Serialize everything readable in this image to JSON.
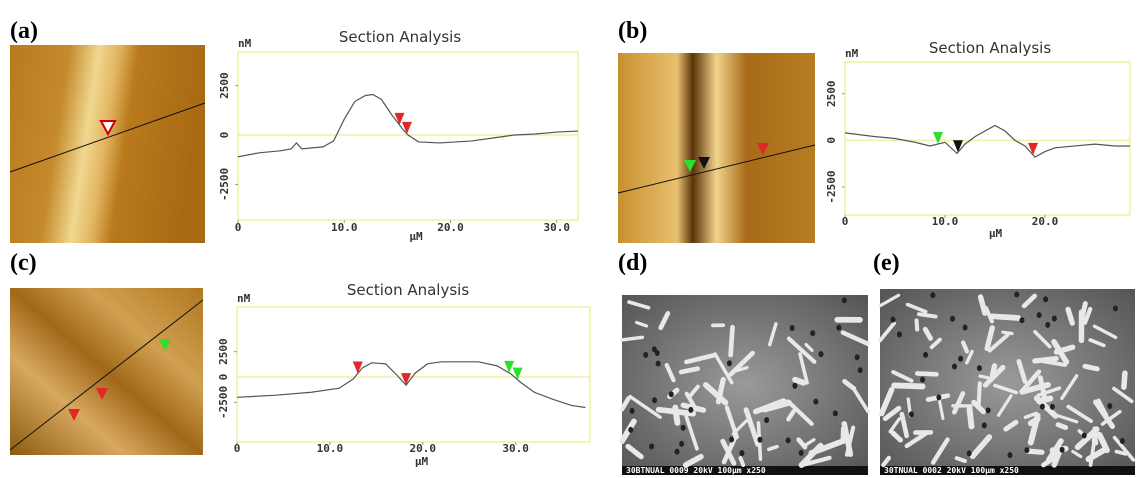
{
  "figure": {
    "labels": [
      "(a)",
      "(b)",
      "(c)",
      "(d)",
      "(e)"
    ],
    "sem_captions": [
      "30BTNUAL 0009 20kV 100μm x250",
      "30TNUAL 0002 20kV 100μm x250"
    ]
  },
  "chart_data": [
    {
      "type": "line",
      "title": "Section Analysis",
      "xlabel": "μM",
      "ylabel": "nM",
      "xlim": [
        0,
        32
      ],
      "ylim": [
        -4300,
        4200
      ],
      "xticks": [
        0,
        {
          "value": 10,
          "label": "10.0"
        },
        {
          "value": 20,
          "label": "20.0"
        },
        {
          "value": 30,
          "label": "30.0"
        }
      ],
      "yticks": [
        2500,
        0,
        -2500
      ],
      "color": "#555555",
      "x": [
        0,
        2,
        4,
        5,
        5.5,
        6,
        8,
        9,
        10,
        11,
        12,
        12.7,
        13.5,
        14.5,
        15.5,
        16,
        17,
        19,
        22,
        24,
        26,
        28,
        30,
        32
      ],
      "values": [
        -1100,
        -900,
        -800,
        -700,
        -400,
        -700,
        -600,
        -300,
        800,
        1700,
        2000,
        2050,
        1800,
        1000,
        300,
        0,
        -350,
        -400,
        -300,
        -150,
        0,
        50,
        150,
        200
      ],
      "cursors": [
        {
          "x": 15.2,
          "color": "#e02828"
        },
        {
          "x": 15.9,
          "color": "#e02828"
        }
      ]
    },
    {
      "type": "line",
      "title": "Section Analysis",
      "xlabel": "μM",
      "ylabel": "nM",
      "xlim": [
        0,
        28.5
      ],
      "ylim": [
        -4000,
        4200
      ],
      "xticks": [
        0,
        {
          "value": 10,
          "label": "10.0"
        },
        {
          "value": 20,
          "label": "20.0"
        }
      ],
      "yticks": [
        2500,
        0,
        -2500
      ],
      "color": "#555555",
      "x": [
        0,
        1.5,
        3,
        5,
        7,
        8.5,
        10,
        11.2,
        12,
        13,
        14,
        15,
        16,
        17,
        18,
        19,
        20,
        21,
        23,
        25,
        27,
        28.5
      ],
      "values": [
        400,
        300,
        200,
        100,
        -100,
        -300,
        -100,
        -700,
        -200,
        200,
        500,
        800,
        500,
        0,
        -300,
        -900,
        -600,
        -400,
        -300,
        -200,
        -300,
        -300
      ],
      "cursors": [
        {
          "x": 9.3,
          "color": "#2ee02e"
        },
        {
          "x": 11.3,
          "color": "#111111"
        },
        {
          "x": 18.8,
          "color": "#e02828"
        }
      ]
    },
    {
      "type": "line",
      "title": "Section Analysis",
      "xlabel": "μM",
      "ylabel": "nM",
      "xlim": [
        0,
        38
      ],
      "ylim": [
        -6400,
        6900
      ],
      "xticks": [
        0,
        {
          "value": 10,
          "label": "10.0"
        },
        {
          "value": 20,
          "label": "20.0"
        },
        {
          "value": 30,
          "label": "30.0"
        }
      ],
      "yticks": [
        2500,
        0,
        -2500
      ],
      "color": "#555555",
      "x": [
        0,
        4,
        8,
        11,
        12.5,
        13.5,
        14.5,
        16,
        17.2,
        18.2,
        19.2,
        20.5,
        22,
        26,
        28,
        29.5,
        30.5,
        32,
        34,
        36,
        37.5
      ],
      "values": [
        -2000,
        -1800,
        -1500,
        -1100,
        -200,
        900,
        1400,
        1300,
        200,
        -800,
        400,
        1300,
        1500,
        1500,
        1100,
        300,
        -500,
        -1500,
        -2200,
        -2800,
        -3000
      ],
      "cursors": [
        {
          "x": 13,
          "color": "#e02828"
        },
        {
          "x": 18.2,
          "color": "#e02828"
        },
        {
          "x": 29.3,
          "color": "#2ee02e"
        },
        {
          "x": 30.2,
          "color": "#2ee02e"
        }
      ]
    }
  ]
}
